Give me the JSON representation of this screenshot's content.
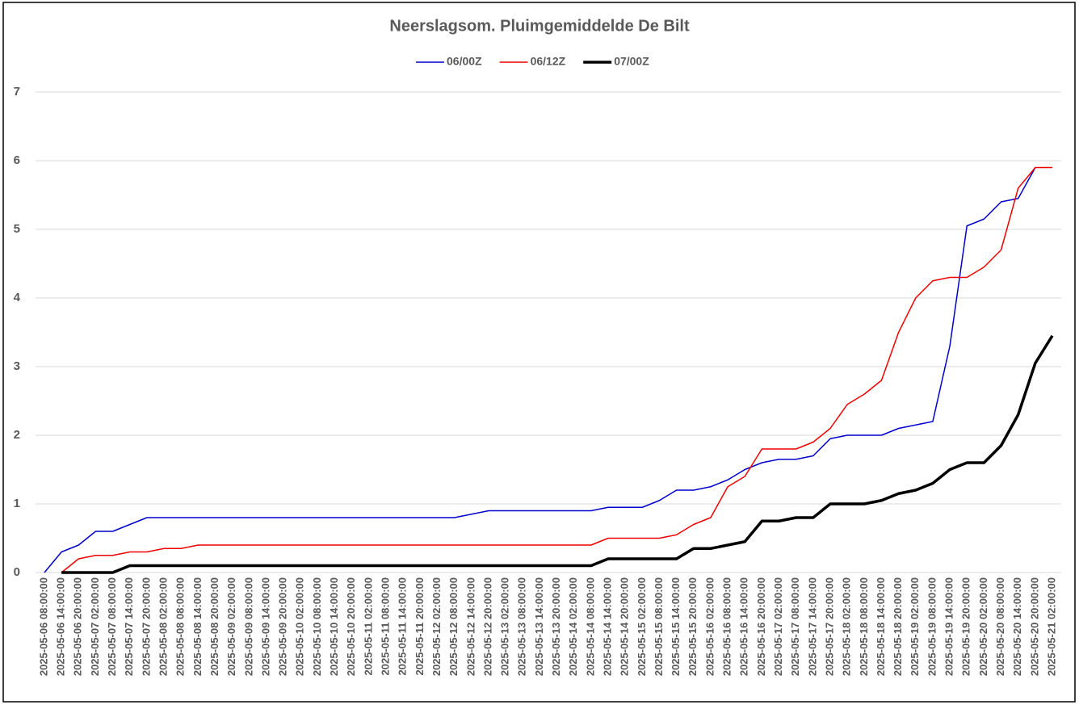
{
  "chart_data": {
    "type": "line",
    "title": "Neerslagsom. Pluimgemiddelde De Bilt",
    "categories": [
      "2025-05-06 08:00:00",
      "2025-05-06 14:00:00",
      "2025-05-06 20:00:00",
      "2025-05-07 02:00:00",
      "2025-05-07 08:00:00",
      "2025-05-07 14:00:00",
      "2025-05-07 20:00:00",
      "2025-05-08 02:00:00",
      "2025-05-08 08:00:00",
      "2025-05-08 14:00:00",
      "2025-05-08 20:00:00",
      "2025-05-09 02:00:00",
      "2025-05-09 08:00:00",
      "2025-05-09 14:00:00",
      "2025-05-09 20:00:00",
      "2025-05-10 02:00:00",
      "2025-05-10 08:00:00",
      "2025-05-10 14:00:00",
      "2025-05-10 20:00:00",
      "2025-05-11 02:00:00",
      "2025-05-11 08:00:00",
      "2025-05-11 14:00:00",
      "2025-05-11 20:00:00",
      "2025-05-12 02:00:00",
      "2025-05-12 08:00:00",
      "2025-05-12 14:00:00",
      "2025-05-12 20:00:00",
      "2025-05-13 02:00:00",
      "2025-05-13 08:00:00",
      "2025-05-13 14:00:00",
      "2025-05-13 20:00:00",
      "2025-05-14 02:00:00",
      "2025-05-14 08:00:00",
      "2025-05-14 14:00:00",
      "2025-05-14 20:00:00",
      "2025-05-15 02:00:00",
      "2025-05-15 08:00:00",
      "2025-05-15 14:00:00",
      "2025-05-15 20:00:00",
      "2025-05-16 02:00:00",
      "2025-05-16 08:00:00",
      "2025-05-16 14:00:00",
      "2025-05-16 20:00:00",
      "2025-05-17 02:00:00",
      "2025-05-17 08:00:00",
      "2025-05-17 14:00:00",
      "2025-05-17 20:00:00",
      "2025-05-18 02:00:00",
      "2025-05-18 08:00:00",
      "2025-05-18 14:00:00",
      "2025-05-18 20:00:00",
      "2025-05-19 02:00:00",
      "2025-05-19 08:00:00",
      "2025-05-19 14:00:00",
      "2025-05-19 20:00:00",
      "2025-05-20 02:00:00",
      "2025-05-20 08:00:00",
      "2025-05-20 14:00:00",
      "2025-05-20 20:00:00",
      "2025-05-21 02:00:00"
    ],
    "series": [
      {
        "name": "06/00Z",
        "color": "#0000cc",
        "width": 1.5,
        "values": [
          0,
          0.3,
          0.4,
          0.6,
          0.6,
          0.7,
          0.8,
          0.8,
          0.8,
          0.8,
          0.8,
          0.8,
          0.8,
          0.8,
          0.8,
          0.8,
          0.8,
          0.8,
          0.8,
          0.8,
          0.8,
          0.8,
          0.8,
          0.8,
          0.8,
          0.85,
          0.9,
          0.9,
          0.9,
          0.9,
          0.9,
          0.9,
          0.9,
          0.95,
          0.95,
          0.95,
          1.05,
          1.2,
          1.2,
          1.25,
          1.35,
          1.5,
          1.6,
          1.65,
          1.65,
          1.7,
          1.95,
          2.0,
          2.0,
          2.0,
          2.1,
          2.15,
          2.2,
          3.3,
          5.05,
          5.15,
          5.4,
          5.45,
          5.9,
          null
        ]
      },
      {
        "name": "06/12Z",
        "color": "#ee0000",
        "width": 1.5,
        "values": [
          null,
          0,
          0.2,
          0.25,
          0.25,
          0.3,
          0.3,
          0.35,
          0.35,
          0.4,
          0.4,
          0.4,
          0.4,
          0.4,
          0.4,
          0.4,
          0.4,
          0.4,
          0.4,
          0.4,
          0.4,
          0.4,
          0.4,
          0.4,
          0.4,
          0.4,
          0.4,
          0.4,
          0.4,
          0.4,
          0.4,
          0.4,
          0.4,
          0.5,
          0.5,
          0.5,
          0.5,
          0.55,
          0.7,
          0.8,
          1.25,
          1.4,
          1.8,
          1.8,
          1.8,
          1.9,
          2.1,
          2.45,
          2.6,
          2.8,
          3.5,
          4.0,
          4.25,
          4.3,
          4.3,
          4.45,
          4.7,
          5.6,
          5.9,
          5.9
        ]
      },
      {
        "name": "07/00Z",
        "color": "#000000",
        "width": 3.5,
        "values": [
          null,
          0,
          0,
          0,
          0,
          0.1,
          0.1,
          0.1,
          0.1,
          0.1,
          0.1,
          0.1,
          0.1,
          0.1,
          0.1,
          0.1,
          0.1,
          0.1,
          0.1,
          0.1,
          0.1,
          0.1,
          0.1,
          0.1,
          0.1,
          0.1,
          0.1,
          0.1,
          0.1,
          0.1,
          0.1,
          0.1,
          0.1,
          0.2,
          0.2,
          0.2,
          0.2,
          0.2,
          0.35,
          0.35,
          0.4,
          0.45,
          0.75,
          0.75,
          0.8,
          0.8,
          1.0,
          1.0,
          1.0,
          1.05,
          1.15,
          1.2,
          1.3,
          1.5,
          1.6,
          1.6,
          1.85,
          2.3,
          3.05,
          3.45
        ]
      }
    ],
    "ylim": [
      0,
      7
    ],
    "yticks": [
      0,
      1,
      2,
      3,
      4,
      5,
      6,
      7
    ],
    "grid": true,
    "legend": "top"
  }
}
